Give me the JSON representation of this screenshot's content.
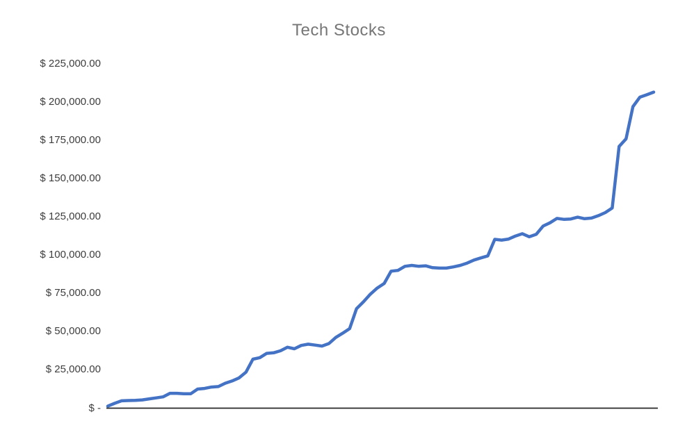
{
  "chart_data": {
    "type": "line",
    "title": "Tech Stocks",
    "xlabel": "",
    "ylabel": "",
    "ylim": [
      0,
      225000
    ],
    "y_tick_interval": 25000,
    "y_tick_labels": [
      "$ -",
      "$ 25,000.00",
      "$ 50,000.00",
      "$ 75,000.00",
      "$ 100,000.00",
      "$ 125,000.00",
      "$ 150,000.00",
      "$ 175,000.00",
      "$ 200,000.00",
      "$ 225,000.00"
    ],
    "x_axis_labels": "none",
    "grid": false,
    "legend_position": "none",
    "series": [
      {
        "name": "Tech Stocks",
        "values": [
          1300,
          3200,
          4800,
          5000,
          5100,
          5400,
          6100,
          6700,
          7400,
          9700,
          9700,
          9400,
          9400,
          12500,
          12900,
          13800,
          14100,
          16300,
          17800,
          19800,
          23500,
          32000,
          33000,
          35800,
          36200,
          37500,
          39800,
          38800,
          41000,
          41800,
          41200,
          40600,
          42200,
          46200,
          49000,
          52000,
          65000,
          69500,
          74500,
          78500,
          81500,
          89500,
          90000,
          92700,
          93300,
          92700,
          93000,
          91800,
          91500,
          91500,
          92300,
          93300,
          94800,
          96800,
          98200,
          99500,
          110300,
          109800,
          110500,
          112500,
          114000,
          112000,
          113600,
          119000,
          121100,
          124000,
          123400,
          123600,
          124800,
          123800,
          124200,
          125800,
          127800,
          130800,
          171000,
          176000,
          197000,
          203200,
          204800,
          206500
        ]
      }
    ],
    "colors": {
      "line": "#4472C4",
      "title": "#767676",
      "axis_line": "#262626",
      "tick_label": "#3d3d3d",
      "background": "#ffffff"
    }
  }
}
